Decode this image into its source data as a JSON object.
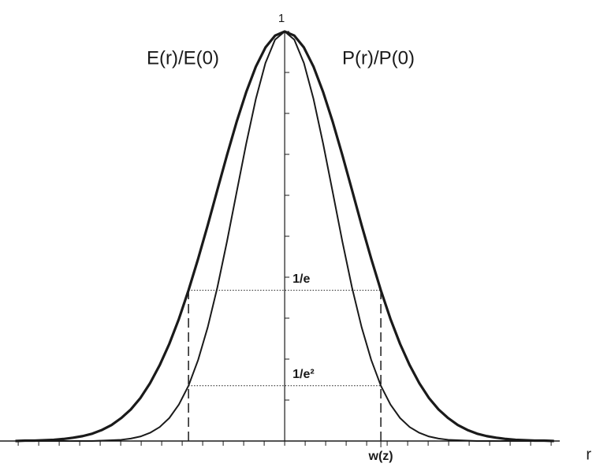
{
  "chart_data": {
    "type": "line",
    "x": [
      -2.8,
      -2.7,
      -2.6,
      -2.5,
      -2.4,
      -2.3,
      -2.2,
      -2.1,
      -2.0,
      -1.9,
      -1.8,
      -1.7,
      -1.6,
      -1.5,
      -1.4,
      -1.3,
      -1.2,
      -1.1,
      -1.0,
      -0.9,
      -0.8,
      -0.7,
      -0.6,
      -0.5,
      -0.4,
      -0.3,
      -0.2,
      -0.1,
      0,
      0.1,
      0.2,
      0.3,
      0.4,
      0.5,
      0.6,
      0.7,
      0.8,
      0.9,
      1.0,
      1.1,
      1.2,
      1.3,
      1.4,
      1.5,
      1.6,
      1.7,
      1.8,
      1.9,
      2.0,
      2.1,
      2.2,
      2.3,
      2.4,
      2.5,
      2.6,
      2.7,
      2.8
    ],
    "series": [
      {
        "name": "E(r)/E(0)",
        "color": "#1a1a1a",
        "values": [
          0,
          0.001,
          0.001,
          0.002,
          0.003,
          0.005,
          0.008,
          0.012,
          0.018,
          0.027,
          0.039,
          0.056,
          0.077,
          0.105,
          0.141,
          0.185,
          0.237,
          0.298,
          0.368,
          0.445,
          0.527,
          0.613,
          0.698,
          0.779,
          0.852,
          0.914,
          0.961,
          0.99,
          1,
          0.99,
          0.961,
          0.914,
          0.852,
          0.779,
          0.698,
          0.613,
          0.527,
          0.445,
          0.368,
          0.298,
          0.237,
          0.185,
          0.141,
          0.105,
          0.077,
          0.056,
          0.039,
          0.027,
          0.018,
          0.012,
          0.008,
          0.005,
          0.003,
          0.002,
          0.001,
          0.001,
          0
        ]
      },
      {
        "name": "P(r)/P(0)",
        "color": "#1a1a1a",
        "values": [
          0,
          0,
          0,
          0,
          0,
          0,
          0,
          0,
          0,
          0.001,
          0.002,
          0.003,
          0.006,
          0.011,
          0.02,
          0.034,
          0.056,
          0.089,
          0.135,
          0.198,
          0.278,
          0.375,
          0.487,
          0.607,
          0.726,
          0.835,
          0.923,
          0.98,
          1,
          0.98,
          0.923,
          0.835,
          0.726,
          0.607,
          0.487,
          0.375,
          0.278,
          0.198,
          0.135,
          0.089,
          0.056,
          0.034,
          0.02,
          0.011,
          0.006,
          0.003,
          0.002,
          0.001,
          0,
          0,
          0,
          0,
          0,
          0,
          0,
          0,
          0
        ]
      }
    ],
    "x_label": "r",
    "xlim": [
      -2.96,
      2.86
    ],
    "ylim": [
      0,
      1
    ],
    "xticks": [
      {
        "value": 1,
        "label": "w(z)"
      }
    ],
    "yticks": [
      {
        "value": 1,
        "label": "1"
      },
      {
        "value": 0.368,
        "label": "1/e"
      },
      {
        "value": 0.135,
        "label": "1/e²"
      }
    ]
  }
}
